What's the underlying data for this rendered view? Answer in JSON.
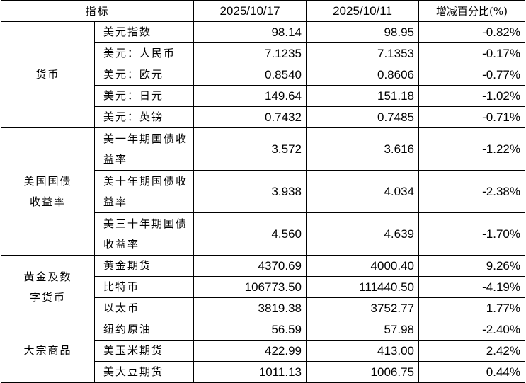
{
  "header": {
    "indicator": "指标",
    "date1": "2025/10/17",
    "date2": "2025/10/11",
    "change": "增减百分比(%)"
  },
  "groups": [
    {
      "category": "货币",
      "rows": [
        {
          "name": "美元指数",
          "v1": "98.14",
          "v2": "98.95",
          "pct": "-0.82%"
        },
        {
          "name": "美元：人民币",
          "v1": "7.1235",
          "v2": "7.1353",
          "pct": "-0.17%"
        },
        {
          "name": "美元：欧元",
          "v1": "0.8540",
          "v2": "0.8606",
          "pct": "-0.77%"
        },
        {
          "name": "美元：日元",
          "v1": "149.64",
          "v2": "151.18",
          "pct": "-1.02%"
        },
        {
          "name": "美元：英镑",
          "v1": "0.7432",
          "v2": "0.7485",
          "pct": "-0.71%"
        }
      ]
    },
    {
      "category": "美国国债收益率",
      "rows": [
        {
          "name": "美一年期国债收益率",
          "v1": "3.572",
          "v2": "3.616",
          "pct": "-1.22%"
        },
        {
          "name": "美十年期国债收益率",
          "v1": "3.938",
          "v2": "4.034",
          "pct": "-2.38%"
        },
        {
          "name": "美三十年期国债收益率",
          "v1": "4.560",
          "v2": "4.639",
          "pct": "-1.70%"
        }
      ]
    },
    {
      "category": "黄金及数字货币",
      "rows": [
        {
          "name": "黄金期货",
          "v1": "4370.69",
          "v2": "4000.40",
          "pct": "9.26%"
        },
        {
          "name": "比特币",
          "v1": "106773.50",
          "v2": "111440.50",
          "pct": "-4.19%"
        },
        {
          "name": "以太币",
          "v1": "3819.38",
          "v2": "3752.77",
          "pct": "1.77%"
        }
      ]
    },
    {
      "category": "大宗商品",
      "rows": [
        {
          "name": "纽约原油",
          "v1": "56.59",
          "v2": "57.98",
          "pct": "-2.40%"
        },
        {
          "name": "美玉米期货",
          "v1": "422.99",
          "v2": "413.00",
          "pct": "2.42%"
        },
        {
          "name": "美大豆期货",
          "v1": "1011.13",
          "v2": "1006.75",
          "pct": "0.44%"
        }
      ]
    }
  ]
}
